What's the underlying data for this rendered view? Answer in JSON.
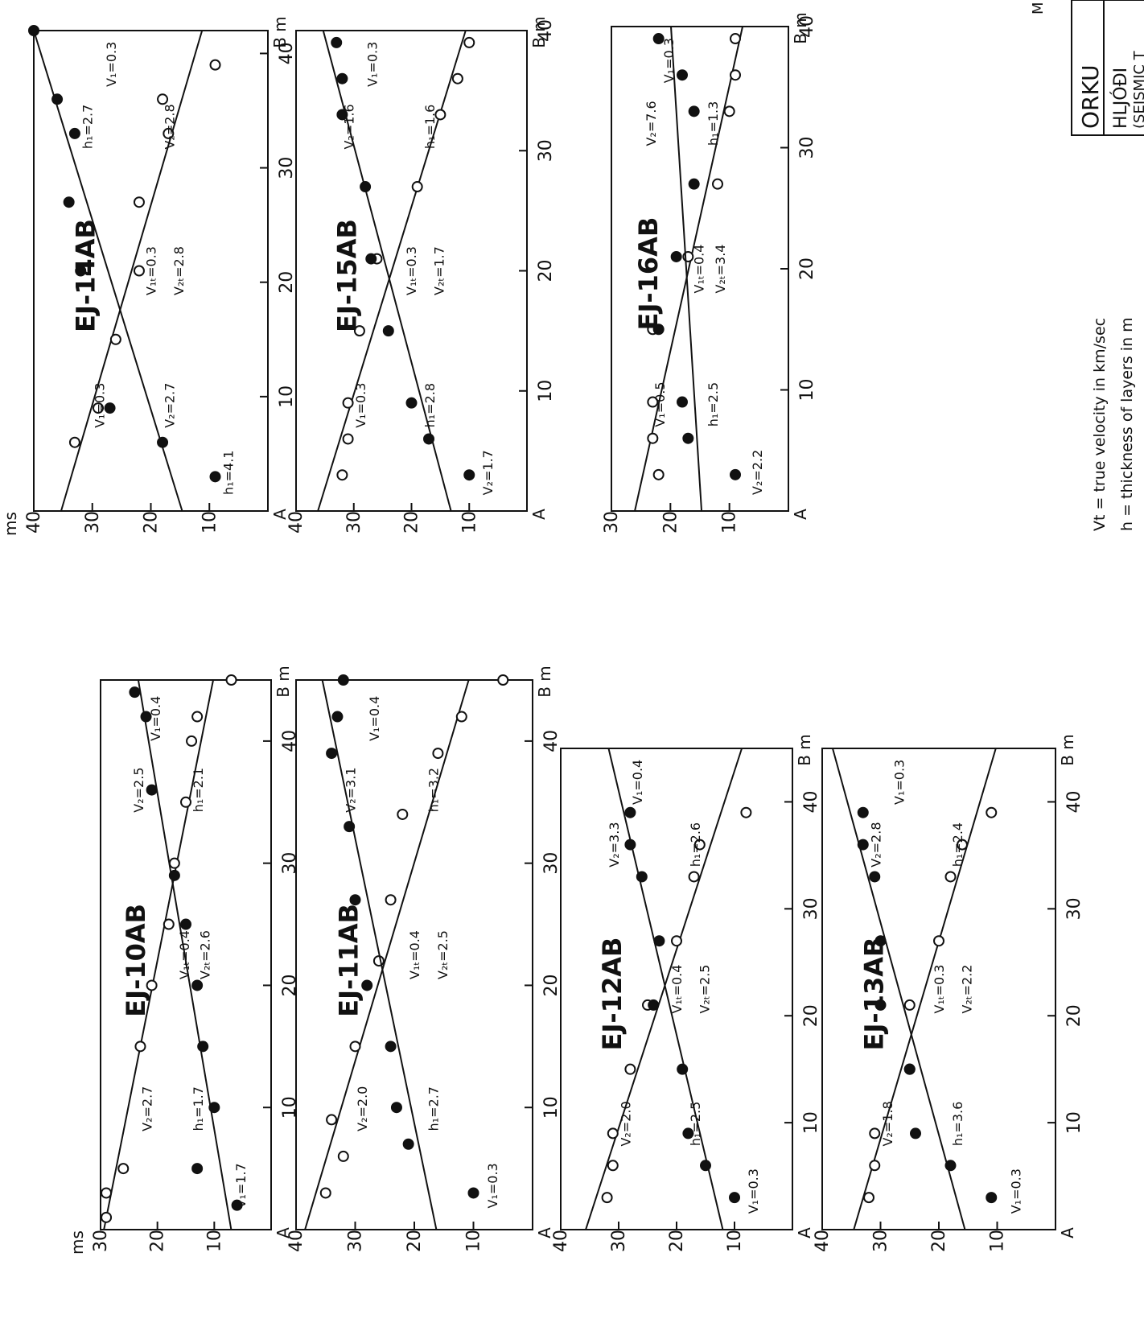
{
  "page": {
    "corner_letter": "M"
  },
  "title_block": {
    "line1": "ORKU",
    "line2": "HLJÓÐI",
    "line3": "(SEISMIC T"
  },
  "legend": {
    "line1": "Vt = true velocity in km/sec",
    "line2": "h = thickness of layers in m"
  },
  "axis_labels": {
    "time_unit": "ms",
    "dist_unit": "m",
    "start": "A",
    "end": "B"
  },
  "chart_data": [
    {
      "type": "scatter",
      "title": "EJ-10AB",
      "xlim": [
        0,
        45
      ],
      "ylim": [
        0,
        30
      ],
      "yticks": [
        10,
        20,
        30
      ],
      "xticks": [
        10,
        20,
        30,
        40
      ],
      "grid": false,
      "series": [
        {
          "marker": "open",
          "x": [
            1,
            3,
            5,
            15,
            20,
            25,
            30,
            35,
            40,
            42,
            45
          ],
          "y": [
            29,
            29,
            26,
            23,
            21,
            18,
            17,
            15,
            14,
            13,
            7
          ]
        },
        {
          "marker": "filled",
          "x": [
            2,
            5,
            10,
            15,
            20,
            25,
            29,
            36,
            42,
            44
          ],
          "y": [
            6,
            13,
            10,
            12,
            13,
            15,
            17,
            21,
            22,
            24
          ]
        }
      ],
      "labels": [
        "V₂=2.7",
        "V₁=1.7",
        "h₁=1.7",
        "V₁ₜ=0.4",
        "V₂ₜ=2.6",
        "h₁=2.1",
        "V₂=2.5",
        "V₁=0.4"
      ]
    },
    {
      "type": "scatter",
      "title": "EJ-11AB",
      "xlim": [
        0,
        45
      ],
      "ylim": [
        0,
        40
      ],
      "yticks": [
        10,
        20,
        30,
        40
      ],
      "xticks": [
        10,
        20,
        30,
        40
      ],
      "grid": false,
      "series": [
        {
          "marker": "open",
          "x": [
            3,
            6,
            9,
            15,
            22,
            27,
            34,
            39,
            42,
            45
          ],
          "y": [
            35,
            32,
            34,
            30,
            26,
            24,
            22,
            16,
            12,
            5
          ]
        },
        {
          "marker": "filled",
          "x": [
            3,
            7,
            10,
            15,
            20,
            27,
            33,
            39,
            42,
            45
          ],
          "y": [
            10,
            21,
            23,
            24,
            28,
            30,
            31,
            34,
            33,
            32
          ]
        }
      ],
      "labels": [
        "V₂=2.0",
        "V₁=0.3",
        "h₁=2.7",
        "V₁ₜ=0.4",
        "V₂ₜ=2.5",
        "h₁=3.2",
        "V₂=3.1",
        "V₁=0.4"
      ]
    },
    {
      "type": "scatter",
      "title": "EJ-12AB",
      "xlim": [
        0,
        45
      ],
      "ylim": [
        0,
        40
      ],
      "yticks": [
        10,
        20,
        30,
        40
      ],
      "xticks": [
        10,
        20,
        30,
        40
      ],
      "grid": false,
      "series": [
        {
          "marker": "open",
          "x": [
            3,
            6,
            9,
            15,
            21,
            27,
            33,
            36,
            39
          ],
          "y": [
            32,
            31,
            31,
            28,
            25,
            20,
            17,
            16,
            8
          ]
        },
        {
          "marker": "filled",
          "x": [
            3,
            6,
            9,
            15,
            21,
            27,
            33,
            36,
            39
          ],
          "y": [
            10,
            15,
            18,
            19,
            24,
            23,
            26,
            28,
            28
          ]
        }
      ],
      "labels": [
        "V₂=2.0",
        "V₁=0.3",
        "h₁=2.5",
        "V₁ₜ=0.4",
        "V₂ₜ=2.5",
        "h₁=2.6",
        "V₂=3.3",
        "V₁=0.4"
      ]
    },
    {
      "type": "scatter",
      "title": "EJ-13AB",
      "xlim": [
        0,
        45
      ],
      "ylim": [
        0,
        40
      ],
      "yticks": [
        10,
        20,
        30,
        40
      ],
      "xticks": [
        10,
        20,
        30,
        40
      ],
      "grid": false,
      "series": [
        {
          "marker": "open",
          "x": [
            3,
            6,
            9,
            15,
            21,
            27,
            33,
            36,
            39
          ],
          "y": [
            32,
            31,
            31,
            25,
            25,
            20,
            18,
            16,
            11
          ]
        },
        {
          "marker": "filled",
          "x": [
            3,
            6,
            9,
            15,
            21,
            27,
            33,
            36,
            39
          ],
          "y": [
            11,
            18,
            24,
            25,
            30,
            30,
            31,
            33,
            33
          ]
        }
      ],
      "labels": [
        "V₂=1.8",
        "V₁=0.3",
        "h₁=3.6",
        "V₁ₜ=0.3",
        "V₂ₜ=2.2",
        "h₁=2.4",
        "V₂=2.8",
        "V₁=0.3"
      ]
    },
    {
      "type": "scatter",
      "title": "EJ-14AB",
      "xlim": [
        0,
        42
      ],
      "ylim": [
        0,
        40
      ],
      "yticks": [
        10,
        20,
        30,
        40
      ],
      "xticks": [
        10,
        20,
        30,
        40
      ],
      "grid": false,
      "series": [
        {
          "marker": "open",
          "x": [
            6,
            9,
            15,
            21,
            27,
            33,
            36,
            39
          ],
          "y": [
            33,
            29,
            26,
            22,
            22,
            17,
            18,
            9
          ]
        },
        {
          "marker": "filled",
          "x": [
            3,
            6,
            9,
            21,
            27,
            33,
            36,
            42
          ],
          "y": [
            9,
            18,
            27,
            32,
            34,
            33,
            36,
            40
          ]
        }
      ],
      "labels": [
        "V₁=0.3",
        "h₁=4.1",
        "V₂=2.7",
        "V₁ₜ=0.3",
        "V₂ₜ=2.8",
        "V₂=2.8",
        "h₁=2.7",
        "V₁=0.3"
      ]
    },
    {
      "type": "scatter",
      "title": "EJ-15AB",
      "xlim": [
        0,
        40
      ],
      "ylim": [
        0,
        40
      ],
      "yticks": [
        10,
        20,
        30,
        40
      ],
      "xticks": [
        10,
        20,
        30,
        40
      ],
      "grid": false,
      "series": [
        {
          "marker": "open",
          "x": [
            3,
            6,
            9,
            15,
            21,
            27,
            33,
            36,
            39
          ],
          "y": [
            32,
            31,
            31,
            29,
            26,
            19,
            15,
            12,
            10
          ]
        },
        {
          "marker": "filled",
          "x": [
            3,
            6,
            9,
            15,
            21,
            27,
            33,
            36,
            39
          ],
          "y": [
            10,
            17,
            20,
            24,
            27,
            28,
            32,
            32,
            33
          ]
        }
      ],
      "labels": [
        "V₁=0.3",
        "V₂=1.7",
        "h₁=2.8",
        "V₁ₜ=0.3",
        "V₂ₜ=1.7",
        "h₁=1.6",
        "V₂=1.6",
        "V₁=0.3"
      ]
    },
    {
      "type": "scatter",
      "title": "EJ-16AB",
      "xlim": [
        0,
        40
      ],
      "ylim": [
        0,
        30
      ],
      "yticks": [
        10,
        20,
        30
      ],
      "xticks": [
        10,
        20,
        30,
        40
      ],
      "grid": false,
      "series": [
        {
          "marker": "open",
          "x": [
            3,
            6,
            9,
            15,
            21,
            27,
            33,
            36,
            39
          ],
          "y": [
            22,
            23,
            23,
            23,
            17,
            12,
            10,
            9,
            9
          ]
        },
        {
          "marker": "filled",
          "x": [
            3,
            6,
            9,
            15,
            21,
            27,
            33,
            36,
            39
          ],
          "y": [
            9,
            17,
            18,
            22,
            19,
            16,
            16,
            18,
            22
          ]
        }
      ],
      "labels": [
        "V₁=0.5",
        "V₂=2.2",
        "h₁=2.5",
        "V₁ₜ=0.4",
        "V₂ₜ=3.4",
        "h₁=1.3",
        "V₂=7.6",
        "V₁=0.3"
      ]
    }
  ]
}
